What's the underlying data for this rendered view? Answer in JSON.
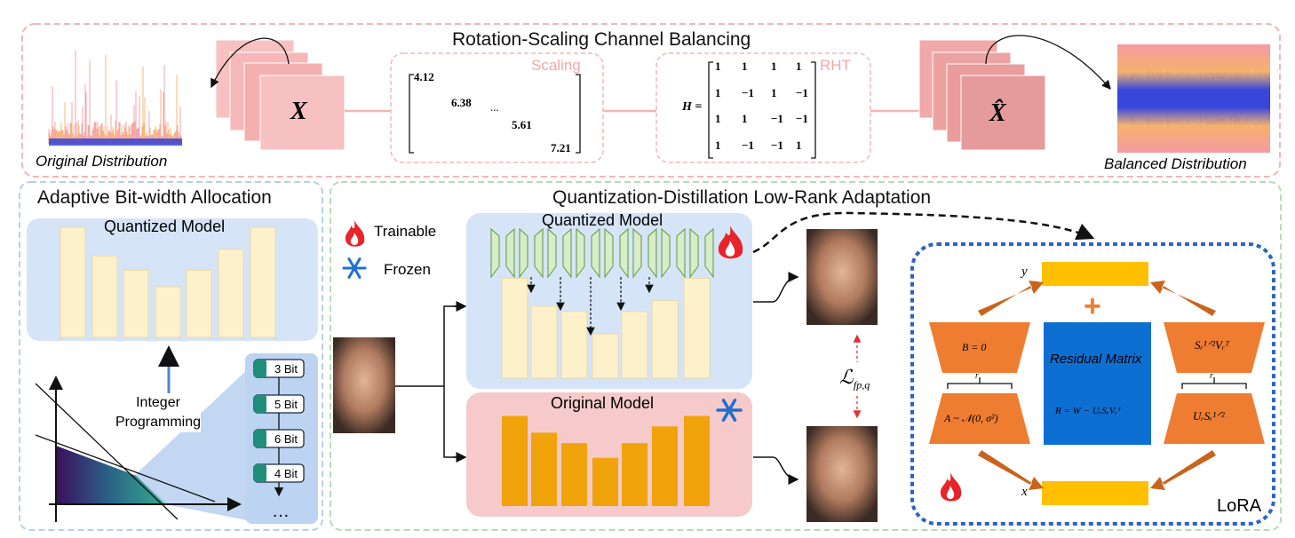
{
  "top": {
    "title": "Rotation-Scaling Channel Balancing",
    "original_distribution": "Original Distribution",
    "balanced_distribution": "Balanced Distribution",
    "x_label": "X",
    "x_hat_label": "X̂",
    "scaling": {
      "label": "Scaling",
      "entries": [
        "4.12",
        "6.38",
        "...",
        "5.61",
        "7.21"
      ]
    },
    "rht": {
      "label": "RHT",
      "h_label": "H =",
      "rows": [
        [
          "1",
          "1",
          "1",
          "1"
        ],
        [
          "1",
          "−1",
          "1",
          "−1"
        ],
        [
          "1",
          "1",
          "−1",
          "−1"
        ],
        [
          "1",
          "−1",
          "−1",
          "1"
        ]
      ]
    }
  },
  "left": {
    "title": "Adaptive Bit-width Allocation",
    "quantized_model": "Quantized Model",
    "integer_programming": "Integer\nProgramming",
    "bits": [
      "3 Bit",
      "5 Bit",
      "6 Bit",
      "4 Bit"
    ],
    "more": "…",
    "bar_levels": [
      1.0,
      0.74,
      0.61,
      0.46,
      0.61,
      0.8,
      1.0
    ]
  },
  "right": {
    "title": "Quantization-Distillation Low-Rank Adaptation",
    "trainable": "Trainable",
    "frozen": "Frozen",
    "quantized_model": "Quantized Model",
    "original_model": "Original Model",
    "loss_label": "ℒ",
    "loss_sub": "fp,q",
    "quantized_bar_levels": [
      0.9,
      0.65,
      0.6,
      0.4,
      0.6,
      0.7,
      0.9
    ],
    "original_bar_levels": [
      0.86,
      0.7,
      0.6,
      0.46,
      0.6,
      0.76,
      0.86
    ],
    "lora": {
      "label": "LoRA",
      "y": "y",
      "x": "x",
      "plus": "+",
      "b_eq": "B = 0",
      "a_eq": "A ~ 𝒩(0, σ²)",
      "r_left": "r",
      "r_right": "r",
      "residual_title": "Residual Matrix",
      "residual_eq": "R = W − UᵣSᵣVᵣᵀ",
      "top_right": "Sᵣ¹ᐟ²Vᵣᵀ",
      "bottom_right": "UᵣSᵣ¹ᐟ²"
    }
  },
  "colors": {
    "top_border": "#f2b8b8",
    "left_border": "#b8cfea",
    "right_border": "#b9dcb4",
    "quant_panel": "#d6e4f7",
    "orig_panel": "#f6caca",
    "pale_bar": "#fdf1cc",
    "gold_bar": "#f0a30a",
    "lora_border": "#2e63c7",
    "lora_orange": "#ee7d31",
    "lora_blue": "#0d6fd1",
    "lora_yellow": "#ffc000",
    "card_pink": "#f7c1c1",
    "card_pink_dark": "#e59b9b",
    "teal": "#1f8e7b",
    "green_gate": "#d7ecc8"
  }
}
